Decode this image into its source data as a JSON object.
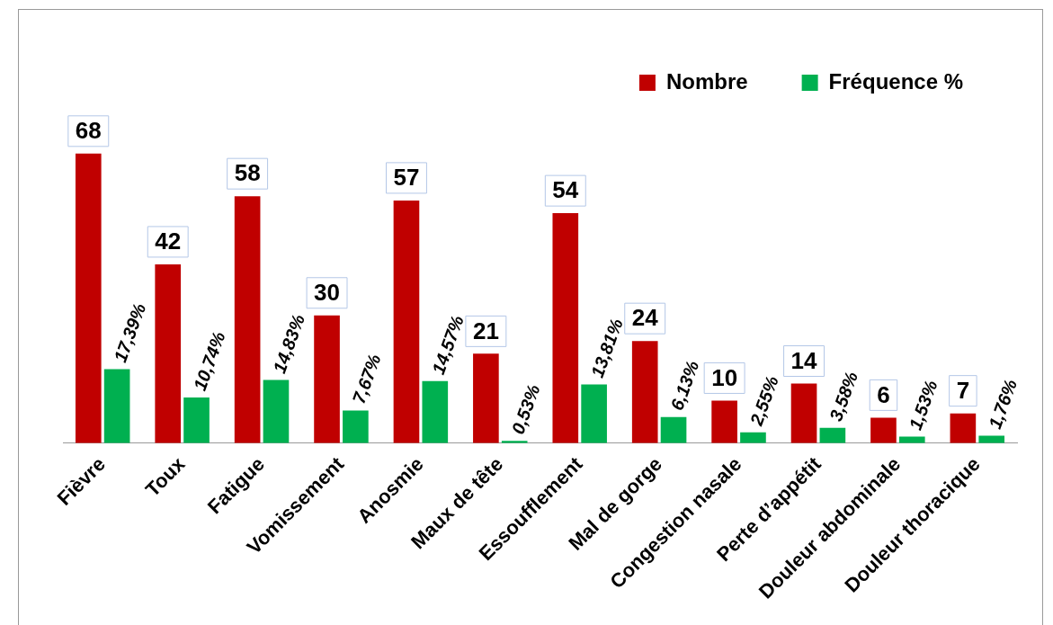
{
  "chart_data": {
    "type": "bar",
    "categories": [
      "Fièvre",
      "Toux",
      "Fatigue",
      "Vomissement",
      "Anosmie",
      "Maux de tête",
      "Essoufflement",
      "Mal de gorge",
      "Congestion nasale",
      "Perte d’appétit",
      "Douleur abdominale",
      "Douleur thoracique"
    ],
    "series": [
      {
        "name": "Nombre",
        "color": "#c00000",
        "values": [
          68,
          42,
          58,
          30,
          57,
          21,
          54,
          24,
          10,
          14,
          6,
          7
        ],
        "value_labels": [
          "68",
          "42",
          "58",
          "30",
          "57",
          "21",
          "54",
          "24",
          "10",
          "14",
          "6",
          "7"
        ]
      },
      {
        "name": "Fréquence %",
        "color": "#00b050",
        "values": [
          17.39,
          10.74,
          14.83,
          7.67,
          14.57,
          0.53,
          13.81,
          6.13,
          2.55,
          3.58,
          1.53,
          1.76
        ],
        "value_labels": [
          "17,39%",
          "10,74%",
          "14,83%",
          "7,67%",
          "14,57%",
          "0,53%",
          "13,81%",
          "6,13%",
          "2,55%",
          "3,58%",
          "1,53%",
          "1,76%"
        ]
      }
    ],
    "legend": "top right"
  }
}
